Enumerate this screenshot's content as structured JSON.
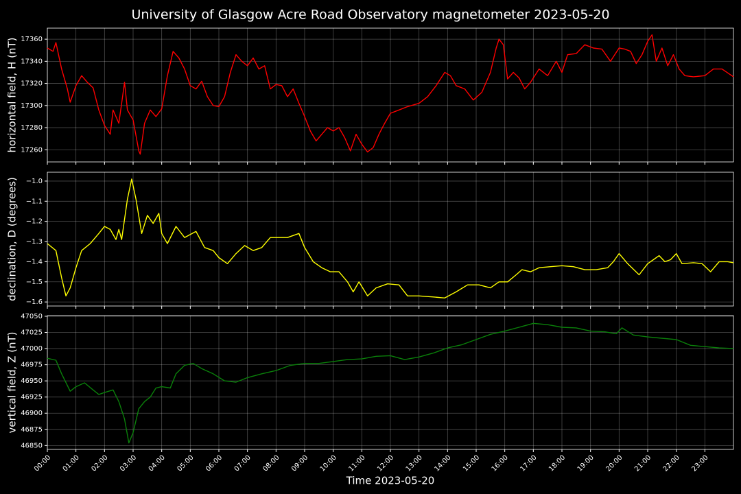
{
  "chart_data": [
    {
      "type": "line",
      "title": "University of Glasgow Acre Road Observatory magnetometer 2023-05-20",
      "ylabel": "horizontal field, H (nT)",
      "grid": true,
      "xlim": [
        0,
        24
      ],
      "ylim": [
        17249,
        17370
      ],
      "yticks": [
        17260,
        17280,
        17300,
        17320,
        17340,
        17360
      ],
      "x": [
        0,
        0.2,
        0.3,
        0.5,
        0.7,
        0.8,
        1,
        1.2,
        1.4,
        1.6,
        1.8,
        2,
        2.2,
        2.3,
        2.5,
        2.6,
        2.7,
        2.8,
        3,
        3.2,
        3.25,
        3.4,
        3.6,
        3.8,
        4,
        4.2,
        4.4,
        4.6,
        4.8,
        5,
        5.2,
        5.4,
        5.6,
        5.8,
        6,
        6.2,
        6.4,
        6.6,
        6.8,
        7,
        7.2,
        7.4,
        7.6,
        7.8,
        8,
        8.2,
        8.4,
        8.6,
        8.8,
        9,
        9.2,
        9.4,
        9.6,
        9.8,
        10,
        10.2,
        10.4,
        10.6,
        10.8,
        11,
        11.2,
        11.4,
        11.6,
        11.8,
        12,
        12.3,
        12.6,
        13,
        13.3,
        13.6,
        13.9,
        14.1,
        14.3,
        14.6,
        14.9,
        15.2,
        15.5,
        15.7,
        15.8,
        15.95,
        16.1,
        16.3,
        16.5,
        16.7,
        16.9,
        17.2,
        17.5,
        17.8,
        18,
        18.2,
        18.5,
        18.8,
        19.1,
        19.4,
        19.7,
        20,
        20.2,
        20.4,
        20.6,
        20.8,
        21,
        21.15,
        21.3,
        21.5,
        21.7,
        21.9,
        22.1,
        22.3,
        22.6,
        23,
        23.3,
        23.6,
        24
      ],
      "series": [
        {
          "name": "H",
          "color": "#ff0000",
          "values": [
            17352,
            17349,
            17357,
            17333,
            17315,
            17303,
            17318,
            17327,
            17321,
            17316,
            17296,
            17282,
            17274,
            17296,
            17284,
            17302,
            17321,
            17296,
            17287,
            17259,
            17256,
            17284,
            17296,
            17290,
            17297,
            17327,
            17349,
            17343,
            17333,
            17318,
            17315,
            17322,
            17308,
            17300,
            17299,
            17308,
            17330,
            17346,
            17340,
            17336,
            17343,
            17333,
            17336,
            17315,
            17319,
            17318,
            17308,
            17315,
            17302,
            17290,
            17277,
            17268,
            17274,
            17280,
            17277,
            17280,
            17271,
            17259,
            17274,
            17265,
            17258,
            17262,
            17274,
            17284,
            17293,
            17296,
            17299,
            17302,
            17308,
            17318,
            17330,
            17327,
            17318,
            17315,
            17305,
            17312,
            17330,
            17352,
            17360,
            17355,
            17324,
            17330,
            17325,
            17315,
            17321,
            17333,
            17327,
            17340,
            17330,
            17346,
            17347,
            17355,
            17352,
            17351,
            17340,
            17352,
            17351,
            17349,
            17338,
            17346,
            17358,
            17364,
            17340,
            17352,
            17336,
            17346,
            17333,
            17327,
            17326,
            17327,
            17333,
            17333,
            17326
          ]
        }
      ]
    },
    {
      "type": "line",
      "ylabel": "declination, D (degrees)",
      "grid": true,
      "xlim": [
        0,
        24
      ],
      "ylim": [
        -1.62,
        -0.956
      ],
      "yticks": [
        {
          "value": -1.6,
          "label": "−1.6"
        },
        {
          "value": -1.5,
          "label": "−1.5"
        },
        {
          "value": -1.4,
          "label": "−1.4"
        },
        {
          "value": -1.3,
          "label": "−1.3"
        },
        {
          "value": -1.2,
          "label": "−1.2"
        },
        {
          "value": -1.1,
          "label": "−1.1"
        },
        {
          "value": -1.0,
          "label": "−1.0"
        }
      ],
      "x": [
        0,
        0.3,
        0.5,
        0.65,
        0.8,
        1,
        1.2,
        1.5,
        1.8,
        2,
        2.2,
        2.4,
        2.5,
        2.6,
        2.8,
        2.95,
        3.1,
        3.3,
        3.5,
        3.7,
        3.9,
        4,
        4.2,
        4.5,
        4.8,
        5.2,
        5.5,
        5.8,
        6,
        6.3,
        6.6,
        6.9,
        7.2,
        7.5,
        7.8,
        8.1,
        8.4,
        8.8,
        9,
        9.3,
        9.6,
        9.9,
        10.2,
        10.5,
        10.7,
        10.9,
        11.2,
        11.5,
        11.9,
        12.3,
        12.6,
        13,
        13.5,
        13.9,
        14.3,
        14.7,
        15.1,
        15.5,
        15.8,
        16.1,
        16.4,
        16.6,
        16.9,
        17.2,
        17.6,
        18,
        18.4,
        18.8,
        19.2,
        19.6,
        19.8,
        20,
        20.3,
        20.7,
        21,
        21.2,
        21.4,
        21.6,
        21.8,
        22,
        22.2,
        22.6,
        22.9,
        23.2,
        23.5,
        23.8,
        24
      ],
      "series": [
        {
          "name": "D",
          "color": "#ffff00",
          "values": [
            -1.31,
            -1.345,
            -1.48,
            -1.57,
            -1.53,
            -1.43,
            -1.345,
            -1.31,
            -1.26,
            -1.225,
            -1.24,
            -1.29,
            -1.24,
            -1.29,
            -1.09,
            -0.99,
            -1.09,
            -1.26,
            -1.17,
            -1.21,
            -1.16,
            -1.26,
            -1.31,
            -1.225,
            -1.28,
            -1.25,
            -1.33,
            -1.345,
            -1.38,
            -1.41,
            -1.36,
            -1.32,
            -1.345,
            -1.33,
            -1.28,
            -1.28,
            -1.28,
            -1.26,
            -1.33,
            -1.4,
            -1.43,
            -1.45,
            -1.45,
            -1.5,
            -1.55,
            -1.5,
            -1.57,
            -1.53,
            -1.51,
            -1.515,
            -1.57,
            -1.57,
            -1.575,
            -1.58,
            -1.55,
            -1.515,
            -1.515,
            -1.53,
            -1.5,
            -1.5,
            -1.465,
            -1.44,
            -1.45,
            -1.43,
            -1.425,
            -1.42,
            -1.425,
            -1.44,
            -1.44,
            -1.43,
            -1.4,
            -1.36,
            -1.41,
            -1.465,
            -1.41,
            -1.39,
            -1.37,
            -1.4,
            -1.39,
            -1.36,
            -1.41,
            -1.405,
            -1.41,
            -1.45,
            -1.4,
            -1.4,
            -1.405
          ]
        }
      ]
    },
    {
      "type": "line",
      "ylabel": "vertical field, Z (nT)",
      "xlabel": "Time 2023-05-20",
      "grid": true,
      "xlim": [
        0,
        24
      ],
      "ylim": [
        46844,
        47051
      ],
      "yticks": [
        46850,
        46875,
        46900,
        46925,
        46950,
        46975,
        47000,
        47025,
        47050
      ],
      "xticks": [
        {
          "value": 0,
          "label": "00:00"
        },
        {
          "value": 1,
          "label": "01:00"
        },
        {
          "value": 2,
          "label": "02:00"
        },
        {
          "value": 3,
          "label": "03:00"
        },
        {
          "value": 4,
          "label": "04:00"
        },
        {
          "value": 5,
          "label": "05:00"
        },
        {
          "value": 6,
          "label": "06:00"
        },
        {
          "value": 7,
          "label": "07:00"
        },
        {
          "value": 8,
          "label": "08:00"
        },
        {
          "value": 9,
          "label": "09:00"
        },
        {
          "value": 10,
          "label": "10:00"
        },
        {
          "value": 11,
          "label": "11:00"
        },
        {
          "value": 12,
          "label": "12:00"
        },
        {
          "value": 13,
          "label": "13:00"
        },
        {
          "value": 14,
          "label": "14:00"
        },
        {
          "value": 15,
          "label": "15:00"
        },
        {
          "value": 16,
          "label": "16:00"
        },
        {
          "value": 17,
          "label": "17:00"
        },
        {
          "value": 18,
          "label": "18:00"
        },
        {
          "value": 19,
          "label": "19:00"
        },
        {
          "value": 20,
          "label": "20:00"
        },
        {
          "value": 21,
          "label": "21:00"
        },
        {
          "value": 22,
          "label": "22:00"
        },
        {
          "value": 23,
          "label": "23:00"
        }
      ],
      "x": [
        0,
        0.3,
        0.5,
        0.8,
        1,
        1.3,
        1.6,
        1.8,
        2,
        2.3,
        2.5,
        2.7,
        2.85,
        3,
        3.2,
        3.4,
        3.6,
        3.8,
        4,
        4.3,
        4.5,
        4.8,
        5.1,
        5.4,
        5.8,
        6.2,
        6.6,
        7,
        7.5,
        8,
        8.5,
        9,
        9.5,
        10,
        10.5,
        11,
        11.5,
        12,
        12.5,
        13,
        13.5,
        14,
        14.5,
        15,
        15.5,
        16,
        16.5,
        17,
        17.5,
        18,
        18.5,
        19,
        19.5,
        19.9,
        20.1,
        20.5,
        21,
        21.5,
        22,
        22.5,
        23,
        23.5,
        24
      ],
      "series": [
        {
          "name": "Z",
          "color": "#0a800a",
          "values": [
            46985,
            46982,
            46961,
            46934,
            46941,
            46947,
            46936,
            46929,
            46932,
            46936,
            46918,
            46891,
            46854,
            46870,
            46907,
            46918,
            46925,
            46939,
            46941,
            46939,
            46961,
            46974,
            46977,
            46969,
            46961,
            46950,
            46948,
            46955,
            46961,
            46966,
            46974,
            46977,
            46977,
            46980,
            46983,
            46984,
            46988,
            46989,
            46983,
            46987,
            46993,
            47001,
            47006,
            47014,
            47022,
            47027,
            47033,
            47039,
            47037,
            47033,
            47032,
            47027,
            47026,
            47023,
            47032,
            47021,
            47018,
            47016,
            47014,
            47005,
            47003,
            47001,
            47000
          ]
        }
      ]
    }
  ]
}
